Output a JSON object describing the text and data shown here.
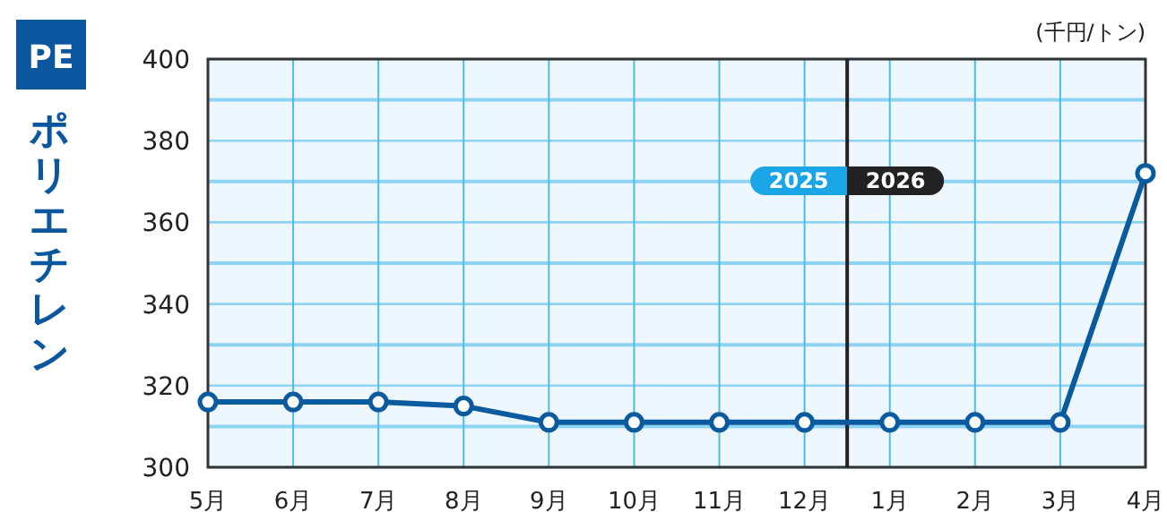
{
  "chart_data": {
    "type": "line",
    "title": "PE",
    "ylabel": "ポリエチレン",
    "categories": [
      "5月",
      "6月",
      "7月",
      "8月",
      "9月",
      "10月",
      "11月",
      "12月",
      "1月",
      "2月",
      "3月",
      "4月"
    ],
    "series": [
      {
        "color": "#0a5aa0",
        "values": [
          316,
          316,
          316,
          315,
          311,
          311,
          311,
          311,
          311,
          311,
          311,
          372
        ]
      }
    ],
    "ylim": [
      300,
      400
    ],
    "yticks": [
      300,
      {
        "value": 310,
        "label": null
      },
      320,
      {
        "value": 330,
        "label": null
      },
      340,
      {
        "value": 350,
        "label": null
      },
      360,
      {
        "value": 370,
        "label": null
      },
      380,
      {
        "value": 390,
        "label": null
      },
      400
    ],
    "grid": true,
    "marker": "circle",
    "line_style": "solid",
    "annotations": [
      "(千円/トン)",
      "2025",
      "2026"
    ]
  }
}
